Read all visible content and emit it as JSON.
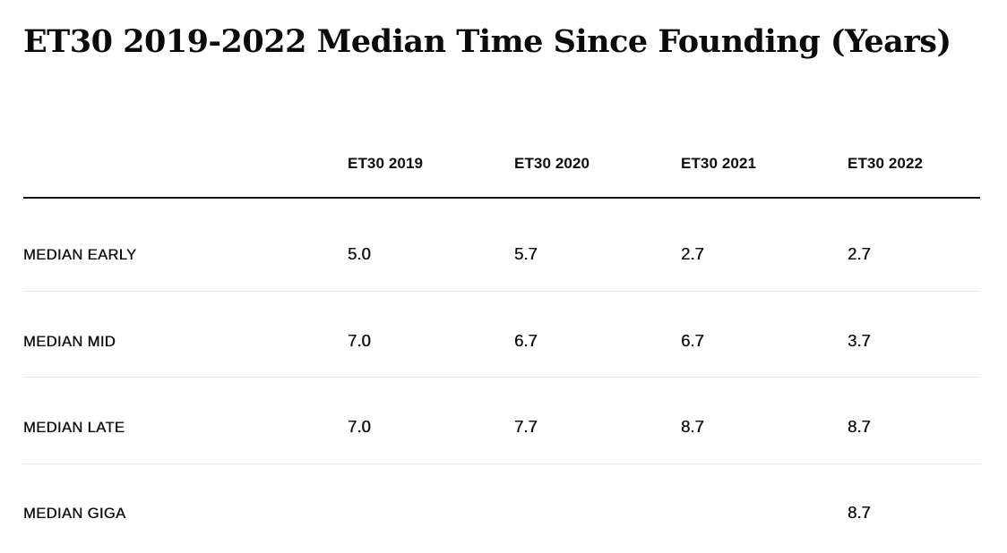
{
  "page": {
    "title": "ET30 2019-2022 Median Time Since Founding (Years)"
  },
  "table": {
    "columns": [
      "ET30 2019",
      "ET30 2020",
      "ET30 2021",
      "ET30 2022"
    ],
    "rows": [
      {
        "label": "MEDIAN EARLY",
        "values": [
          "5.0",
          "5.7",
          "2.7",
          "2.7"
        ]
      },
      {
        "label": "MEDIAN MID",
        "values": [
          "7.0",
          "6.7",
          "6.7",
          "3.7"
        ]
      },
      {
        "label": "MEDIAN LATE",
        "values": [
          "7.0",
          "7.7",
          "8.7",
          "8.7"
        ]
      },
      {
        "label": "MEDIAN GIGA",
        "values": [
          "",
          "",
          "",
          "8.7"
        ]
      }
    ]
  },
  "colors": {
    "background": "#ffffff",
    "title_text": "#0b0b0b",
    "body_text": "#101010",
    "header_rule": "#151515",
    "row_divider": "#e9e7e1"
  },
  "chart_data": {
    "type": "table",
    "title": "ET30 2019-2022 Median Time Since Founding (Years)",
    "units": "years",
    "columns": [
      "ET30 2019",
      "ET30 2020",
      "ET30 2021",
      "ET30 2022"
    ],
    "rows": [
      {
        "label": "MEDIAN EARLY",
        "values": [
          5.0,
          5.7,
          2.7,
          2.7
        ]
      },
      {
        "label": "MEDIAN MID",
        "values": [
          7.0,
          6.7,
          6.7,
          3.7
        ]
      },
      {
        "label": "MEDIAN LATE",
        "values": [
          7.0,
          7.7,
          8.7,
          8.7
        ]
      },
      {
        "label": "MEDIAN GIGA",
        "values": [
          null,
          null,
          null,
          8.7
        ]
      }
    ]
  }
}
